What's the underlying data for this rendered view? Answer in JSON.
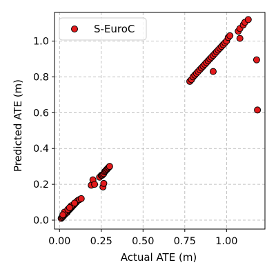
{
  "chart_data": {
    "type": "scatter",
    "xlabel": "Actual ATE (m)",
    "ylabel": "Predicted ATE (m)",
    "xlim": [
      -0.03,
      1.23
    ],
    "ylim": [
      -0.05,
      1.16
    ],
    "xticks": [
      "0.00",
      "0.25",
      "0.50",
      "0.75",
      "1.00"
    ],
    "xtick_values": [
      0.0,
      0.25,
      0.5,
      0.75,
      1.0
    ],
    "yticks": [
      "0.0",
      "0.2",
      "0.4",
      "0.6",
      "0.8",
      "1.0"
    ],
    "ytick_values": [
      0.0,
      0.2,
      0.4,
      0.6,
      0.8,
      1.0
    ],
    "grid": true,
    "legend_position": "upper-left",
    "marker_color": "#e31a1c",
    "marker_edge_color": "#000000",
    "series": [
      {
        "name": "S-EuroC",
        "points": [
          [
            0.01,
            0.01
          ],
          [
            0.015,
            0.015
          ],
          [
            0.02,
            0.02
          ],
          [
            0.025,
            0.025
          ],
          [
            0.03,
            0.03
          ],
          [
            0.035,
            0.035
          ],
          [
            0.04,
            0.04
          ],
          [
            0.045,
            0.042
          ],
          [
            0.05,
            0.05
          ],
          [
            0.055,
            0.055
          ],
          [
            0.06,
            0.06
          ],
          [
            0.065,
            0.065
          ],
          [
            0.07,
            0.07
          ],
          [
            0.075,
            0.075
          ],
          [
            0.08,
            0.08
          ],
          [
            0.085,
            0.085
          ],
          [
            0.09,
            0.09
          ],
          [
            0.095,
            0.095
          ],
          [
            0.1,
            0.1
          ],
          [
            0.105,
            0.105
          ],
          [
            0.11,
            0.11
          ],
          [
            0.12,
            0.115
          ],
          [
            0.13,
            0.12
          ],
          [
            0.03,
            0.045
          ],
          [
            0.05,
            0.06
          ],
          [
            0.07,
            0.08
          ],
          [
            0.09,
            0.095
          ],
          [
            0.02,
            0.03
          ],
          [
            0.06,
            0.07
          ],
          [
            0.19,
            0.195
          ],
          [
            0.2,
            0.225
          ],
          [
            0.21,
            0.2
          ],
          [
            0.24,
            0.24
          ],
          [
            0.25,
            0.25
          ],
          [
            0.255,
            0.25
          ],
          [
            0.26,
            0.255
          ],
          [
            0.265,
            0.26
          ],
          [
            0.27,
            0.27
          ],
          [
            0.275,
            0.275
          ],
          [
            0.28,
            0.28
          ],
          [
            0.285,
            0.285
          ],
          [
            0.29,
            0.29
          ],
          [
            0.295,
            0.295
          ],
          [
            0.3,
            0.3
          ],
          [
            0.26,
            0.185
          ],
          [
            0.265,
            0.205
          ],
          [
            0.78,
            0.775
          ],
          [
            0.79,
            0.785
          ],
          [
            0.8,
            0.8
          ],
          [
            0.81,
            0.81
          ],
          [
            0.82,
            0.82
          ],
          [
            0.83,
            0.83
          ],
          [
            0.84,
            0.84
          ],
          [
            0.85,
            0.85
          ],
          [
            0.86,
            0.86
          ],
          [
            0.87,
            0.87
          ],
          [
            0.88,
            0.88
          ],
          [
            0.89,
            0.89
          ],
          [
            0.9,
            0.9
          ],
          [
            0.91,
            0.91
          ],
          [
            0.92,
            0.92
          ],
          [
            0.93,
            0.93
          ],
          [
            0.94,
            0.94
          ],
          [
            0.95,
            0.95
          ],
          [
            0.96,
            0.96
          ],
          [
            0.97,
            0.97
          ],
          [
            0.98,
            0.98
          ],
          [
            0.99,
            0.99
          ],
          [
            1.0,
            1.0
          ],
          [
            1.01,
            1.02
          ],
          [
            1.02,
            1.03
          ],
          [
            1.07,
            1.055
          ],
          [
            1.08,
            1.07
          ],
          [
            1.1,
            1.09
          ],
          [
            1.11,
            1.105
          ],
          [
            1.13,
            1.12
          ],
          [
            0.92,
            0.83
          ],
          [
            1.08,
            1.015
          ],
          [
            1.18,
            0.895
          ],
          [
            1.185,
            0.615
          ]
        ]
      }
    ]
  }
}
